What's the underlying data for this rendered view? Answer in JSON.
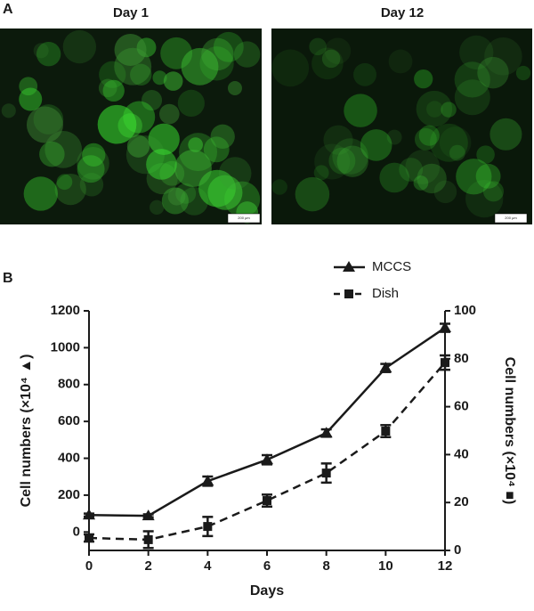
{
  "panels": {
    "a": {
      "label": "A",
      "images": [
        {
          "title": "Day 1",
          "scale": "200 μm"
        },
        {
          "title": "Day 12",
          "scale": "200 μm"
        }
      ]
    },
    "b": {
      "label": "B"
    }
  },
  "chart_data": {
    "type": "line",
    "xlabel": "Days",
    "ylabel": "Cell numbers (×10⁴ ▲)",
    "y2label": "Cell numbers (×10⁴ ■)",
    "x": [
      0,
      2,
      4,
      6,
      8,
      10,
      12
    ],
    "xlim": [
      0,
      12
    ],
    "xticks": [
      0,
      2,
      4,
      6,
      8,
      10,
      12
    ],
    "ylim": [
      -100,
      1200
    ],
    "yticks": [
      0,
      200,
      400,
      600,
      800,
      1000,
      1200
    ],
    "y2lim": [
      0,
      100
    ],
    "y2ticks": [
      0,
      20,
      40,
      60,
      80,
      100
    ],
    "legend": "top",
    "series": [
      {
        "name": "MCCS",
        "color": "#1a1a1a",
        "marker": "triangle",
        "dash": "solid",
        "values": [
          92,
          88,
          276,
          392,
          537,
          890,
          1108
        ],
        "errors": [
          8,
          8,
          25,
          25,
          20,
          22,
          22
        ]
      },
      {
        "name": "Dish",
        "color": "#1a1a1a",
        "marker": "square",
        "dash": "dashed",
        "axis": "y2",
        "values": [
          5.2,
          4.5,
          10,
          20.8,
          32.3,
          49.8,
          78.4
        ],
        "errors": [
          1.5,
          3.5,
          4,
          2.5,
          4,
          2.5,
          3
        ]
      }
    ]
  }
}
